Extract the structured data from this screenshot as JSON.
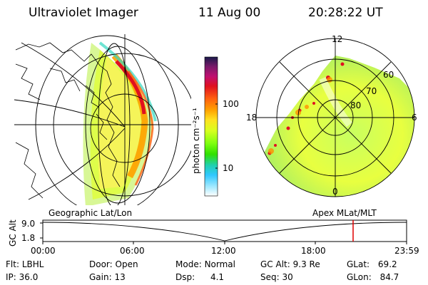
{
  "header": {
    "instrument": "Ultraviolet Imager",
    "date": "11 Aug 00",
    "time": "20:28:22 UT"
  },
  "geographic_panel": {
    "label": "Geographic Lat/Lon"
  },
  "polar_panel": {
    "label": "Apex MLat/MLT",
    "mlt_labels": [
      "12",
      "18",
      "0",
      "6"
    ],
    "mlat_labels": [
      "60",
      "70",
      "80"
    ]
  },
  "colorbar": {
    "unit_label": "photon cm⁻²s⁻¹",
    "ticks": [
      "100",
      "10"
    ],
    "colors": [
      "#1a1a4a",
      "#7a1a6a",
      "#c01070",
      "#e01020",
      "#ff6010",
      "#ffa000",
      "#ffe020",
      "#d8ff20",
      "#80ff10",
      "#30e000",
      "#20d0b0",
      "#30c8ff",
      "#9ee8ff",
      "#ffffff"
    ]
  },
  "altitude_plot": {
    "ylabel": "GC Alt",
    "yticks": [
      "9.0",
      "1.8"
    ],
    "xticks": [
      "00:00",
      "06:00",
      "12:00",
      "18:00",
      "23:59"
    ],
    "marker_color": "#e00000",
    "marker_time": "20:28"
  },
  "status": {
    "row1": [
      {
        "label": "Flt:",
        "value": "LBHL"
      },
      {
        "label": "Door:",
        "value": "Open"
      },
      {
        "label": "Mode:",
        "value": "Normal"
      },
      {
        "label": "GC Alt:",
        "value": "9.3 Re"
      },
      {
        "label": "GLat:",
        "value": "69.2"
      }
    ],
    "row2": [
      {
        "label": "IP:",
        "value": "36.0"
      },
      {
        "label": "Gain:",
        "value": "13"
      },
      {
        "label": "Dsp:",
        "value": "4.1"
      },
      {
        "label": "Seq:",
        "value": "30"
      },
      {
        "label": "GLon:",
        "value": "84.7"
      }
    ]
  }
}
